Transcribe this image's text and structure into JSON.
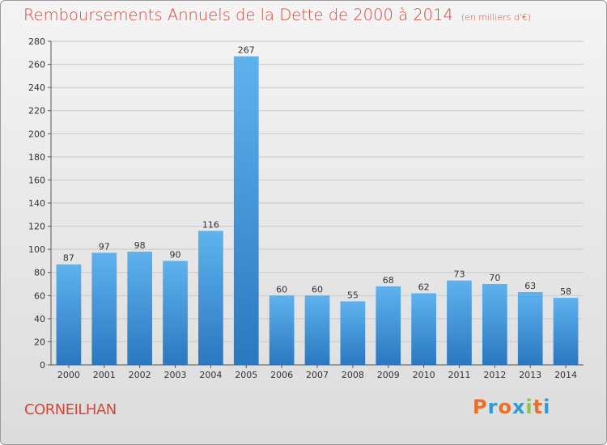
{
  "title": "Remboursements Annuels de la Dette de 2000 à 2014",
  "subtitle": "(en milliers d'€)",
  "place": "CORNEILHAN",
  "logo": {
    "letters": [
      "P",
      "r",
      "o",
      "x",
      "i",
      "t",
      "i"
    ],
    "colors": [
      "#e8702a",
      "#2f9ad6",
      "#e8702a",
      "#2f9ad6",
      "#8bc34a",
      "#e8702a",
      "#2f9ad6"
    ]
  },
  "colors": {
    "bar_light": "#5aaeea",
    "bar_dark": "#2a78c0",
    "title": "#d2473b"
  },
  "chart_data": {
    "type": "bar",
    "title": "Remboursements Annuels de la Dette de 2000 à 2014",
    "subtitle": "(en milliers d'€)",
    "xlabel": "",
    "ylabel": "",
    "categories": [
      "2000",
      "2001",
      "2002",
      "2003",
      "2004",
      "2005",
      "2006",
      "2007",
      "2008",
      "2009",
      "2010",
      "2011",
      "2012",
      "2013",
      "2014"
    ],
    "values": [
      87,
      97,
      98,
      90,
      116,
      267,
      60,
      60,
      55,
      68,
      62,
      73,
      70,
      63,
      58
    ],
    "ylim": [
      0,
      280
    ],
    "yticks": [
      0,
      20,
      40,
      60,
      80,
      100,
      120,
      140,
      160,
      180,
      200,
      220,
      240,
      260,
      280
    ],
    "grid": true,
    "legend": "none"
  }
}
